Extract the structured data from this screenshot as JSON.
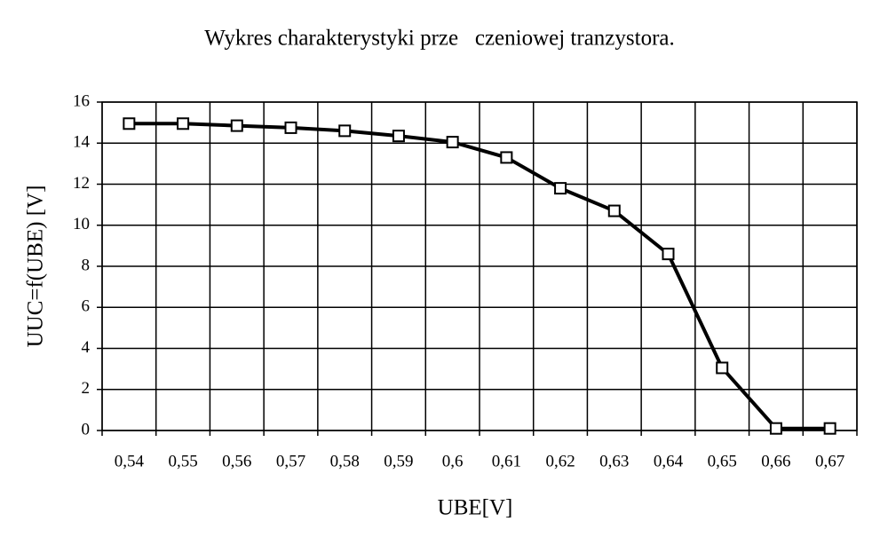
{
  "chart_data": {
    "type": "line",
    "title": "Wykres charakterystyki prze   czeniowej tranzystora.",
    "x_label": "UBE[V]",
    "y_label": "UUC=f(UBE)  [V]",
    "categories": [
      "0,54",
      "0,55",
      "0,56",
      "0,57",
      "0,58",
      "0,59",
      "0,6",
      "0,61",
      "0,62",
      "0,63",
      "0,64",
      "0,65",
      "0,66",
      "0,67"
    ],
    "values": [
      14.95,
      14.95,
      14.85,
      14.75,
      14.6,
      14.35,
      14.05,
      13.3,
      11.8,
      10.7,
      8.6,
      3.05,
      0.1,
      0.1
    ],
    "color": "#000000",
    "ylim": [
      0,
      16
    ],
    "yticks": [
      0,
      2,
      4,
      6,
      8,
      10,
      12,
      14,
      16
    ],
    "grid": true
  }
}
